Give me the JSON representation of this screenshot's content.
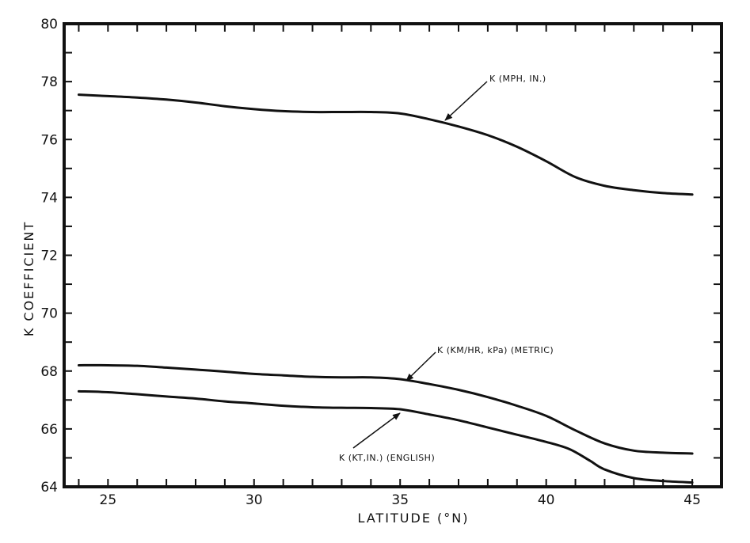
{
  "chart_data": {
    "type": "line",
    "title": "",
    "xlabel": "LATITUDE (°N)",
    "ylabel": "K COEFFICIENT",
    "xlim": [
      23.5,
      46
    ],
    "ylim": [
      64,
      80
    ],
    "x_ticks": [
      25,
      30,
      35,
      40,
      45
    ],
    "y_ticks": [
      64,
      66,
      68,
      70,
      72,
      74,
      76,
      78,
      80
    ],
    "grid": false,
    "series": [
      {
        "name": "K (MPH, IN.)",
        "x": [
          24,
          25,
          26,
          27,
          28,
          29,
          30,
          31,
          32,
          33,
          34,
          35,
          36,
          37,
          38,
          39,
          40,
          41,
          42,
          43,
          44,
          45
        ],
        "values": [
          77.55,
          77.5,
          77.45,
          77.38,
          77.28,
          77.15,
          77.05,
          76.98,
          76.95,
          76.95,
          76.95,
          76.9,
          76.7,
          76.45,
          76.15,
          75.75,
          75.25,
          74.7,
          74.4,
          74.25,
          74.15,
          74.1
        ]
      },
      {
        "name": "K (KM/HR, kPa) (METRIC)",
        "x": [
          24,
          25,
          26,
          27,
          28,
          29,
          30,
          31,
          32,
          33,
          34,
          35,
          36,
          37,
          38,
          39,
          40,
          41,
          42,
          43,
          44,
          45
        ],
        "values": [
          68.2,
          68.2,
          68.18,
          68.12,
          68.05,
          67.98,
          67.9,
          67.85,
          67.8,
          67.78,
          67.78,
          67.72,
          67.55,
          67.35,
          67.1,
          66.8,
          66.45,
          65.95,
          65.5,
          65.25,
          65.18,
          65.15
        ]
      },
      {
        "name": "K (KT,IN.) (ENGLISH)",
        "x": [
          24,
          25,
          26,
          27,
          28,
          29,
          30,
          31,
          32,
          33,
          34,
          35,
          36,
          37,
          38,
          39,
          40,
          40.8,
          41.5,
          42,
          43,
          44,
          45
        ],
        "values": [
          67.3,
          67.27,
          67.2,
          67.12,
          67.05,
          66.95,
          66.88,
          66.8,
          66.75,
          66.73,
          66.72,
          66.68,
          66.5,
          66.3,
          66.05,
          65.8,
          65.55,
          65.3,
          64.9,
          64.6,
          64.3,
          64.2,
          64.15
        ]
      }
    ],
    "annotations": [
      {
        "text": "K (MPH, IN.)",
        "points_to_x": 36.5,
        "points_to_y": 76.7
      },
      {
        "text": "K (KM/HR, kPa) (METRIC)",
        "points_to_x": 35.5,
        "points_to_y": 67.75
      },
      {
        "text": "K (KT,IN.) (ENGLISH)",
        "points_to_x": 36,
        "points_to_y": 66.55
      }
    ]
  }
}
